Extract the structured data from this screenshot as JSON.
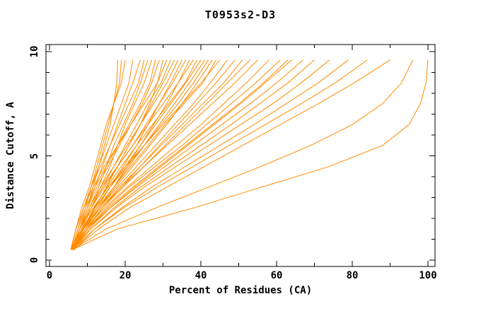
{
  "chart_data": {
    "type": "line",
    "title": "T0953s2-D3",
    "xlabel": "Percent of Residues (CA)",
    "ylabel": "Distance Cutoff, A",
    "xlim": [
      0,
      100
    ],
    "ylim": [
      0,
      10
    ],
    "x_ticks_major": [
      0,
      20,
      40,
      60,
      80,
      100
    ],
    "x_ticks_minor": [
      10,
      30,
      50,
      70,
      90
    ],
    "y_ticks_major": [
      0,
      5,
      10
    ],
    "y_ticks_minor": [
      1,
      2,
      3,
      4,
      6,
      7,
      8,
      9
    ],
    "grid": false,
    "legend": null,
    "curve_color": "#FF8C00",
    "axis_color": "#000000",
    "background_color": "#FFFFFF",
    "y_grid": [
      0.5,
      1.5,
      2.5,
      3.5,
      4.5,
      5.5,
      6.5,
      7.5,
      8.5,
      9.6
    ],
    "curves_x": [
      [
        6,
        8,
        10,
        11.5,
        13,
        14.5,
        16,
        17,
        17.8,
        18
      ],
      [
        6.5,
        8,
        9.5,
        11,
        12.5,
        14,
        15.5,
        17,
        18.5,
        19
      ],
      [
        5.8,
        7,
        8.5,
        10.5,
        12,
        13.5,
        15,
        17,
        19,
        20
      ],
      [
        6,
        7.5,
        9,
        11,
        13,
        15,
        17,
        19,
        21,
        22
      ],
      [
        6.2,
        8,
        10,
        12,
        14,
        16,
        18,
        20,
        22,
        24
      ],
      [
        5.6,
        7,
        9,
        11,
        13.5,
        16,
        18.5,
        21,
        23.5,
        25
      ],
      [
        6,
        8,
        10.5,
        13,
        15,
        17,
        19.5,
        22,
        24,
        26
      ],
      [
        6.4,
        8.5,
        11,
        13.5,
        16,
        18,
        20,
        22.5,
        25,
        27
      ],
      [
        5.9,
        7.5,
        9.5,
        12,
        15,
        18,
        21,
        24,
        26.5,
        28
      ],
      [
        6.1,
        8,
        10,
        12.5,
        15.5,
        18.5,
        21.5,
        24.5,
        27,
        29
      ],
      [
        6.5,
        9,
        12,
        15,
        18,
        21,
        24,
        26.5,
        28.5,
        30
      ],
      [
        5.7,
        7,
        9,
        11.5,
        14.5,
        18,
        21.5,
        25,
        28.5,
        31
      ],
      [
        6,
        8.5,
        11,
        14,
        17,
        20,
        23,
        26,
        29.5,
        32
      ],
      [
        6.3,
        9,
        12,
        15,
        18,
        21,
        24,
        27,
        30,
        33
      ],
      [
        5.8,
        8,
        10.5,
        13.5,
        17,
        20.5,
        24,
        27.5,
        31,
        34
      ],
      [
        6.2,
        9,
        12.5,
        16,
        19.5,
        23,
        26,
        29,
        32,
        35
      ],
      [
        6,
        8,
        11,
        14.5,
        18,
        22,
        25.5,
        29,
        32.5,
        36
      ],
      [
        6.6,
        9.5,
        13,
        17,
        20.5,
        24,
        27.5,
        31,
        34,
        37
      ],
      [
        5.9,
        8,
        11,
        14,
        18,
        22,
        26,
        30,
        34,
        38
      ],
      [
        6.1,
        8.8,
        11.8,
        15.2,
        19,
        23,
        27.2,
        31.5,
        35.8,
        39
      ],
      [
        6.1,
        9,
        12,
        16,
        20,
        24,
        28,
        32,
        36,
        40
      ],
      [
        6.4,
        9.5,
        13,
        17,
        21,
        25,
        29,
        33,
        37,
        41
      ],
      [
        6,
        8.5,
        12,
        16,
        20.5,
        25,
        29.5,
        34,
        38,
        42
      ],
      [
        6.2,
        9,
        13,
        17.5,
        22,
        26.5,
        31,
        35,
        39,
        43
      ],
      [
        5.7,
        8.5,
        12.5,
        17,
        21.5,
        26,
        30.5,
        35.5,
        40.5,
        44
      ],
      [
        5.8,
        8,
        11.5,
        15.5,
        20,
        25,
        30,
        35,
        40,
        45
      ],
      [
        6,
        9,
        13,
        18,
        23,
        28,
        33,
        38,
        42.5,
        47
      ],
      [
        6.5,
        10,
        14,
        19,
        24,
        29,
        34,
        39,
        44,
        49
      ],
      [
        6,
        9,
        13.5,
        18.5,
        24,
        29.5,
        35,
        40.5,
        46,
        51
      ],
      [
        6.3,
        9.5,
        14,
        19.5,
        25,
        30.5,
        36,
        41.5,
        47,
        53
      ],
      [
        5.9,
        9,
        13.5,
        19,
        25,
        31,
        37,
        43,
        49,
        55
      ],
      [
        6.1,
        9.5,
        14.5,
        20.5,
        27,
        33.5,
        40,
        46,
        52,
        58
      ],
      [
        6,
        10,
        15,
        21,
        28,
        35,
        41.5,
        48,
        54.5,
        61
      ],
      [
        6.2,
        10,
        15.5,
        22,
        29,
        36,
        43,
        50,
        56.5,
        63
      ],
      [
        6.4,
        10.5,
        16,
        22.5,
        29.5,
        36.5,
        43.5,
        50.5,
        57,
        64
      ],
      [
        6,
        10,
        16,
        23,
        30.5,
        38,
        45.5,
        53,
        60,
        67
      ],
      [
        6.2,
        11,
        17,
        24,
        32,
        40,
        48,
        55.5,
        63,
        70
      ],
      [
        6,
        11,
        17.5,
        25,
        33.5,
        42,
        50.5,
        59,
        66.5,
        74
      ],
      [
        6.5,
        12,
        19,
        27,
        36,
        45,
        54,
        62.5,
        71,
        79
      ],
      [
        6,
        12,
        19.5,
        28.5,
        38,
        47.5,
        57,
        66.5,
        75.5,
        84
      ],
      [
        6.3,
        13,
        21,
        31,
        41,
        51,
        61,
        71,
        80.5,
        90
      ],
      [
        6,
        15,
        28,
        42,
        56,
        69,
        80,
        88,
        93,
        96
      ],
      [
        6,
        18,
        38,
        56,
        74,
        88,
        95,
        98,
        99.5,
        100
      ]
    ]
  }
}
